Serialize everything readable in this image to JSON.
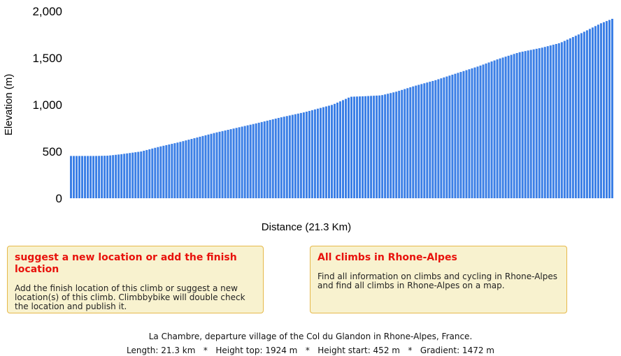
{
  "chart_data": {
    "type": "bar",
    "xlabel": "Distance (21.3 Km)",
    "ylabel": "Elevation (m)",
    "ylim": [
      0,
      2000
    ],
    "yticks": [
      "0",
      "500",
      "1,000",
      "1,500",
      "2,000"
    ],
    "color": "#3b7fe6",
    "grid": false,
    "profile": [
      [
        0,
        452
      ],
      [
        1.0,
        452
      ],
      [
        1.5,
        455
      ],
      [
        2.0,
        470
      ],
      [
        2.8,
        500
      ],
      [
        3.5,
        550
      ],
      [
        4.3,
        600
      ],
      [
        5.0,
        650
      ],
      [
        5.7,
        700
      ],
      [
        6.5,
        750
      ],
      [
        7.3,
        800
      ],
      [
        8.2,
        860
      ],
      [
        9.2,
        920
      ],
      [
        10.3,
        1000
      ],
      [
        11.0,
        1085
      ],
      [
        11.5,
        1090
      ],
      [
        12.2,
        1100
      ],
      [
        12.8,
        1140
      ],
      [
        13.5,
        1200
      ],
      [
        14.3,
        1260
      ],
      [
        15.2,
        1340
      ],
      [
        16.0,
        1410
      ],
      [
        16.8,
        1490
      ],
      [
        17.6,
        1560
      ],
      [
        18.5,
        1610
      ],
      [
        19.2,
        1660
      ],
      [
        20.0,
        1760
      ],
      [
        20.8,
        1870
      ],
      [
        21.3,
        1924
      ]
    ]
  },
  "box_left": {
    "title": "suggest a new location or add the finish location",
    "text": "Add the finish location of this climb or suggest a new location(s) of this climb. Climbbybike will double check the location and publish it."
  },
  "box_right": {
    "title": "All climbs in Rhone-Alpes",
    "text": "Find all information on climbs and cycling in Rhone-Alpes and find all climbs in Rhone-Alpes on a map."
  },
  "footer": {
    "line1": "La Chambre, departure village of the Col du Glandon in Rhone-Alpes, France.",
    "line2": "Length: 21.3 km   *   Height top: 1924 m   *   Height start: 452 m   *   Gradient: 1472 m"
  }
}
